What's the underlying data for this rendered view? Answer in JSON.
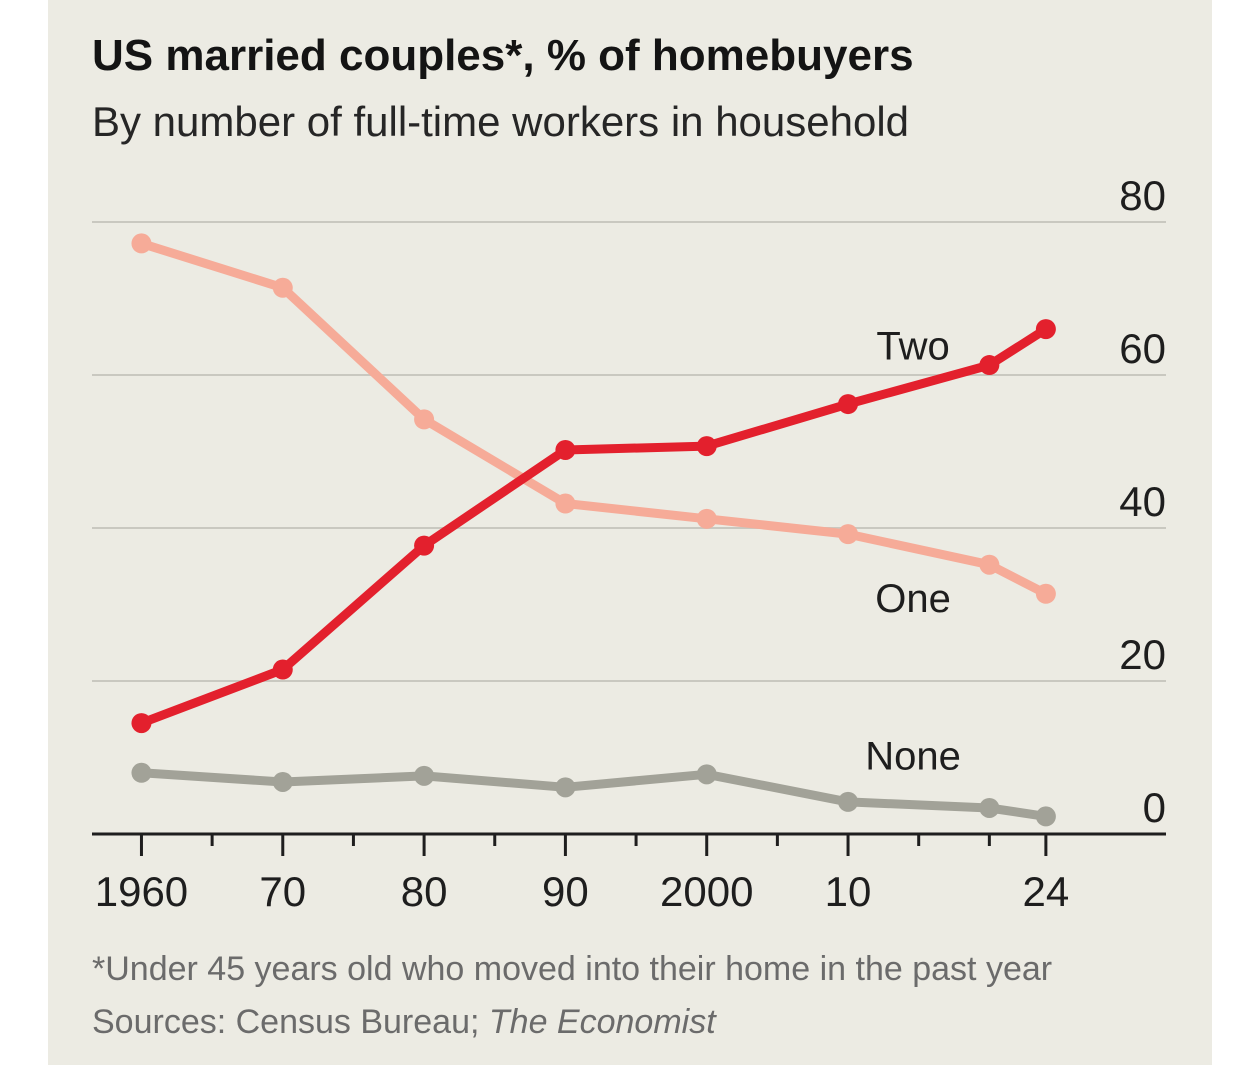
{
  "chart_data": {
    "type": "line",
    "title": "US married couples*, % of homebuyers",
    "subtitle": "By number of full-time workers in household",
    "x": [
      1960,
      1970,
      1980,
      1990,
      2000,
      2010,
      2020,
      2024
    ],
    "x_tick_labels": [
      {
        "x": 1960,
        "label": "1960"
      },
      {
        "x": 1970,
        "label": "70"
      },
      {
        "x": 1980,
        "label": "80"
      },
      {
        "x": 1990,
        "label": "90"
      },
      {
        "x": 2000,
        "label": "2000"
      },
      {
        "x": 2010,
        "label": "10"
      },
      {
        "x": 2024,
        "label": "24"
      }
    ],
    "x_minor_ticks": [
      1965,
      1975,
      1985,
      1995,
      2005,
      2015,
      2020
    ],
    "xlim": [
      1956.5,
      2032.5
    ],
    "ylim": [
      0,
      80
    ],
    "y_ticks": [
      0,
      20,
      40,
      60,
      80
    ],
    "y_axis_side": "right",
    "grid": true,
    "series": [
      {
        "name": "Two",
        "color": "#e3202d",
        "values": [
          14.5,
          21.5,
          37.7,
          50.2,
          50.7,
          56.2,
          61.3,
          66.0
        ]
      },
      {
        "name": "One",
        "color": "#f6ab98",
        "values": [
          77.2,
          71.4,
          54.2,
          43.2,
          41.2,
          39.2,
          35.2,
          31.4
        ]
      },
      {
        "name": "None",
        "color": "#a2a298",
        "values": [
          8.0,
          6.8,
          7.6,
          6.1,
          7.8,
          4.2,
          3.4,
          2.3
        ]
      }
    ],
    "footnote": "*Under 45 years old who moved into their home in the past year",
    "source_prefix": "Sources: Census Bureau; ",
    "source_italic": "The Economist"
  }
}
